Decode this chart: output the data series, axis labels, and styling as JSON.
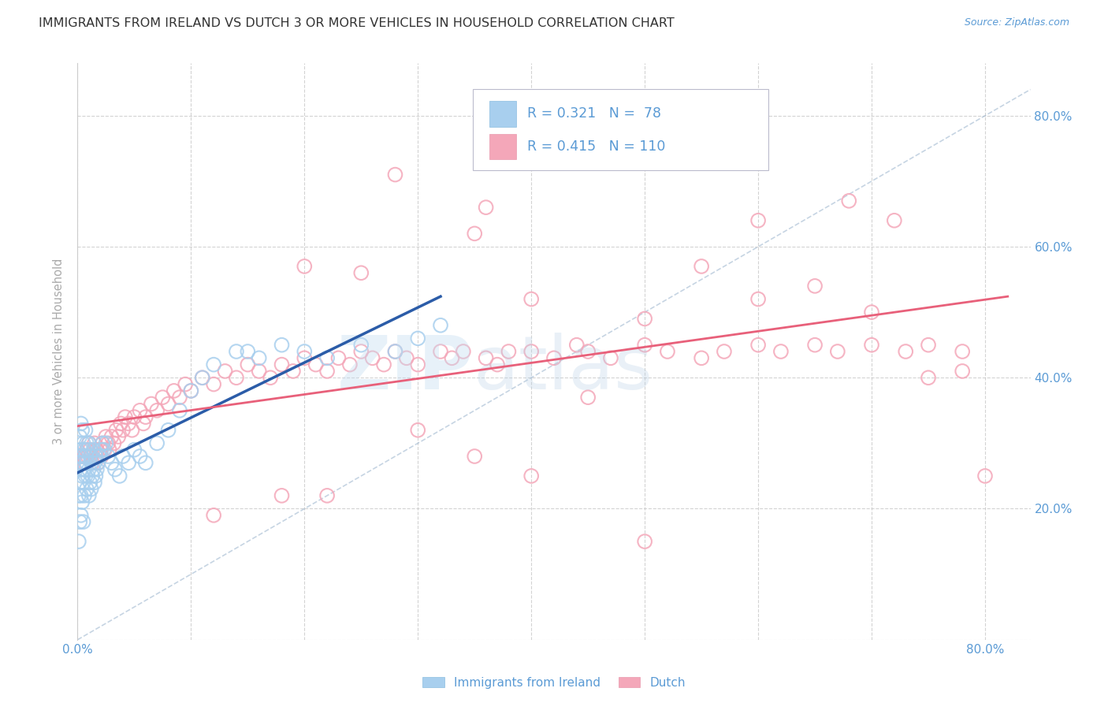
{
  "title": "IMMIGRANTS FROM IRELAND VS DUTCH 3 OR MORE VEHICLES IN HOUSEHOLD CORRELATION CHART",
  "source": "Source: ZipAtlas.com",
  "ylabel": "3 or more Vehicles in Household",
  "ireland_R": 0.321,
  "ireland_N": 78,
  "dutch_R": 0.415,
  "dutch_N": 110,
  "ireland_color": "#A8CFEE",
  "dutch_color": "#F4A7B9",
  "ireland_line_color": "#2B5CA8",
  "dutch_line_color": "#E8607A",
  "axis_label_color": "#5B9BD5",
  "grid_color": "#C8C8C8",
  "background_color": "#FFFFFF",
  "title_fontsize": 11.5,
  "legend_label_ireland": "Immigrants from Ireland",
  "legend_label_dutch": "Dutch",
  "xlim": [
    0.0,
    0.84
  ],
  "ylim": [
    0.0,
    0.88
  ],
  "x_tick_pos": [
    0.0,
    0.1,
    0.2,
    0.3,
    0.4,
    0.5,
    0.6,
    0.7,
    0.8
  ],
  "x_tick_labels": [
    "0.0%",
    "",
    "",
    "",
    "",
    "",
    "",
    "",
    "80.0%"
  ],
  "y_tick_pos": [
    0.0,
    0.2,
    0.4,
    0.6,
    0.8
  ],
  "y_tick_labels_right": [
    "",
    "20.0%",
    "40.0%",
    "60.0%",
    "80.0%"
  ],
  "ireland_x": [
    0.001,
    0.001,
    0.001,
    0.002,
    0.002,
    0.002,
    0.002,
    0.003,
    0.003,
    0.003,
    0.003,
    0.003,
    0.004,
    0.004,
    0.004,
    0.004,
    0.005,
    0.005,
    0.005,
    0.005,
    0.006,
    0.006,
    0.006,
    0.007,
    0.007,
    0.007,
    0.008,
    0.008,
    0.008,
    0.009,
    0.009,
    0.01,
    0.01,
    0.01,
    0.011,
    0.011,
    0.012,
    0.012,
    0.013,
    0.014,
    0.014,
    0.015,
    0.015,
    0.016,
    0.016,
    0.017,
    0.018,
    0.019,
    0.02,
    0.021,
    0.022,
    0.023,
    0.025,
    0.027,
    0.03,
    0.033,
    0.037,
    0.04,
    0.045,
    0.05,
    0.055,
    0.06,
    0.07,
    0.08,
    0.09,
    0.1,
    0.11,
    0.12,
    0.14,
    0.16,
    0.18,
    0.2,
    0.22,
    0.25,
    0.28,
    0.3,
    0.32,
    0.15
  ],
  "ireland_y": [
    0.28,
    0.22,
    0.15,
    0.27,
    0.24,
    0.31,
    0.18,
    0.26,
    0.29,
    0.22,
    0.33,
    0.19,
    0.25,
    0.28,
    0.32,
    0.21,
    0.24,
    0.27,
    0.3,
    0.18,
    0.26,
    0.29,
    0.22,
    0.25,
    0.28,
    0.32,
    0.23,
    0.27,
    0.3,
    0.25,
    0.29,
    0.22,
    0.26,
    0.3,
    0.24,
    0.28,
    0.23,
    0.27,
    0.25,
    0.26,
    0.29,
    0.24,
    0.27,
    0.25,
    0.28,
    0.26,
    0.27,
    0.28,
    0.28,
    0.29,
    0.3,
    0.29,
    0.3,
    0.28,
    0.27,
    0.26,
    0.25,
    0.28,
    0.27,
    0.29,
    0.28,
    0.27,
    0.3,
    0.32,
    0.35,
    0.38,
    0.4,
    0.42,
    0.44,
    0.43,
    0.45,
    0.44,
    0.43,
    0.45,
    0.44,
    0.46,
    0.48,
    0.44
  ],
  "dutch_x": [
    0.003,
    0.005,
    0.006,
    0.007,
    0.008,
    0.009,
    0.01,
    0.011,
    0.012,
    0.013,
    0.015,
    0.016,
    0.017,
    0.018,
    0.02,
    0.021,
    0.022,
    0.024,
    0.025,
    0.027,
    0.028,
    0.03,
    0.032,
    0.034,
    0.036,
    0.038,
    0.04,
    0.042,
    0.045,
    0.048,
    0.05,
    0.055,
    0.058,
    0.06,
    0.065,
    0.07,
    0.075,
    0.08,
    0.085,
    0.09,
    0.095,
    0.1,
    0.11,
    0.12,
    0.13,
    0.14,
    0.15,
    0.16,
    0.17,
    0.18,
    0.19,
    0.2,
    0.21,
    0.22,
    0.23,
    0.24,
    0.25,
    0.26,
    0.27,
    0.28,
    0.29,
    0.3,
    0.32,
    0.33,
    0.34,
    0.36,
    0.37,
    0.38,
    0.4,
    0.42,
    0.44,
    0.45,
    0.47,
    0.5,
    0.52,
    0.55,
    0.57,
    0.6,
    0.62,
    0.65,
    0.67,
    0.7,
    0.73,
    0.75,
    0.78,
    0.35,
    0.36,
    0.2,
    0.25,
    0.28,
    0.4,
    0.5,
    0.6,
    0.68,
    0.72,
    0.8,
    0.18,
    0.22,
    0.3,
    0.35,
    0.4,
    0.55,
    0.6,
    0.65,
    0.7,
    0.75,
    0.78,
    0.12,
    0.45,
    0.5
  ],
  "dutch_y": [
    0.28,
    0.27,
    0.28,
    0.27,
    0.29,
    0.28,
    0.3,
    0.29,
    0.28,
    0.27,
    0.3,
    0.28,
    0.29,
    0.27,
    0.29,
    0.28,
    0.3,
    0.29,
    0.31,
    0.3,
    0.29,
    0.31,
    0.3,
    0.32,
    0.31,
    0.33,
    0.32,
    0.34,
    0.33,
    0.32,
    0.34,
    0.35,
    0.33,
    0.34,
    0.36,
    0.35,
    0.37,
    0.36,
    0.38,
    0.37,
    0.39,
    0.38,
    0.4,
    0.39,
    0.41,
    0.4,
    0.42,
    0.41,
    0.4,
    0.42,
    0.41,
    0.43,
    0.42,
    0.41,
    0.43,
    0.42,
    0.44,
    0.43,
    0.42,
    0.44,
    0.43,
    0.42,
    0.44,
    0.43,
    0.44,
    0.43,
    0.42,
    0.44,
    0.44,
    0.43,
    0.45,
    0.44,
    0.43,
    0.45,
    0.44,
    0.43,
    0.44,
    0.45,
    0.44,
    0.45,
    0.44,
    0.45,
    0.44,
    0.45,
    0.44,
    0.62,
    0.66,
    0.57,
    0.56,
    0.71,
    0.52,
    0.49,
    0.64,
    0.67,
    0.64,
    0.25,
    0.22,
    0.22,
    0.32,
    0.28,
    0.25,
    0.57,
    0.52,
    0.54,
    0.5,
    0.4,
    0.41,
    0.19,
    0.37,
    0.15
  ]
}
